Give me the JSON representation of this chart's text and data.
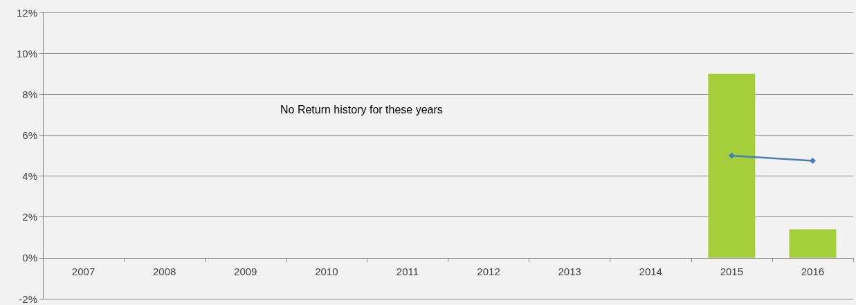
{
  "chart_data": {
    "type": "bar",
    "categories": [
      "2007",
      "2008",
      "2009",
      "2010",
      "2011",
      "2012",
      "2013",
      "2014",
      "2015",
      "2016"
    ],
    "series": [
      {
        "color": "#a5cf3a",
        "values": [
          null,
          null,
          null,
          null,
          null,
          null,
          null,
          null,
          9.0,
          1.4
        ]
      },
      {
        "type": "line",
        "color": "#4a7ebb",
        "marker": "diamond",
        "values": [
          null,
          null,
          null,
          null,
          null,
          null,
          null,
          null,
          5.0,
          4.75
        ]
      }
    ],
    "ylim": [
      -2,
      12
    ],
    "yticks": [
      {
        "value": -2,
        "label": "-2%"
      },
      {
        "value": 0,
        "label": "0%"
      },
      {
        "value": 2,
        "label": "2%"
      },
      {
        "value": 4,
        "label": "4%"
      },
      {
        "value": 6,
        "label": "6%"
      },
      {
        "value": 8,
        "label": "8%"
      },
      {
        "value": 10,
        "label": "10%"
      },
      {
        "value": 12,
        "label": "12%"
      }
    ],
    "grid": "y",
    "annotations": [
      "No Return history for these years"
    ]
  }
}
